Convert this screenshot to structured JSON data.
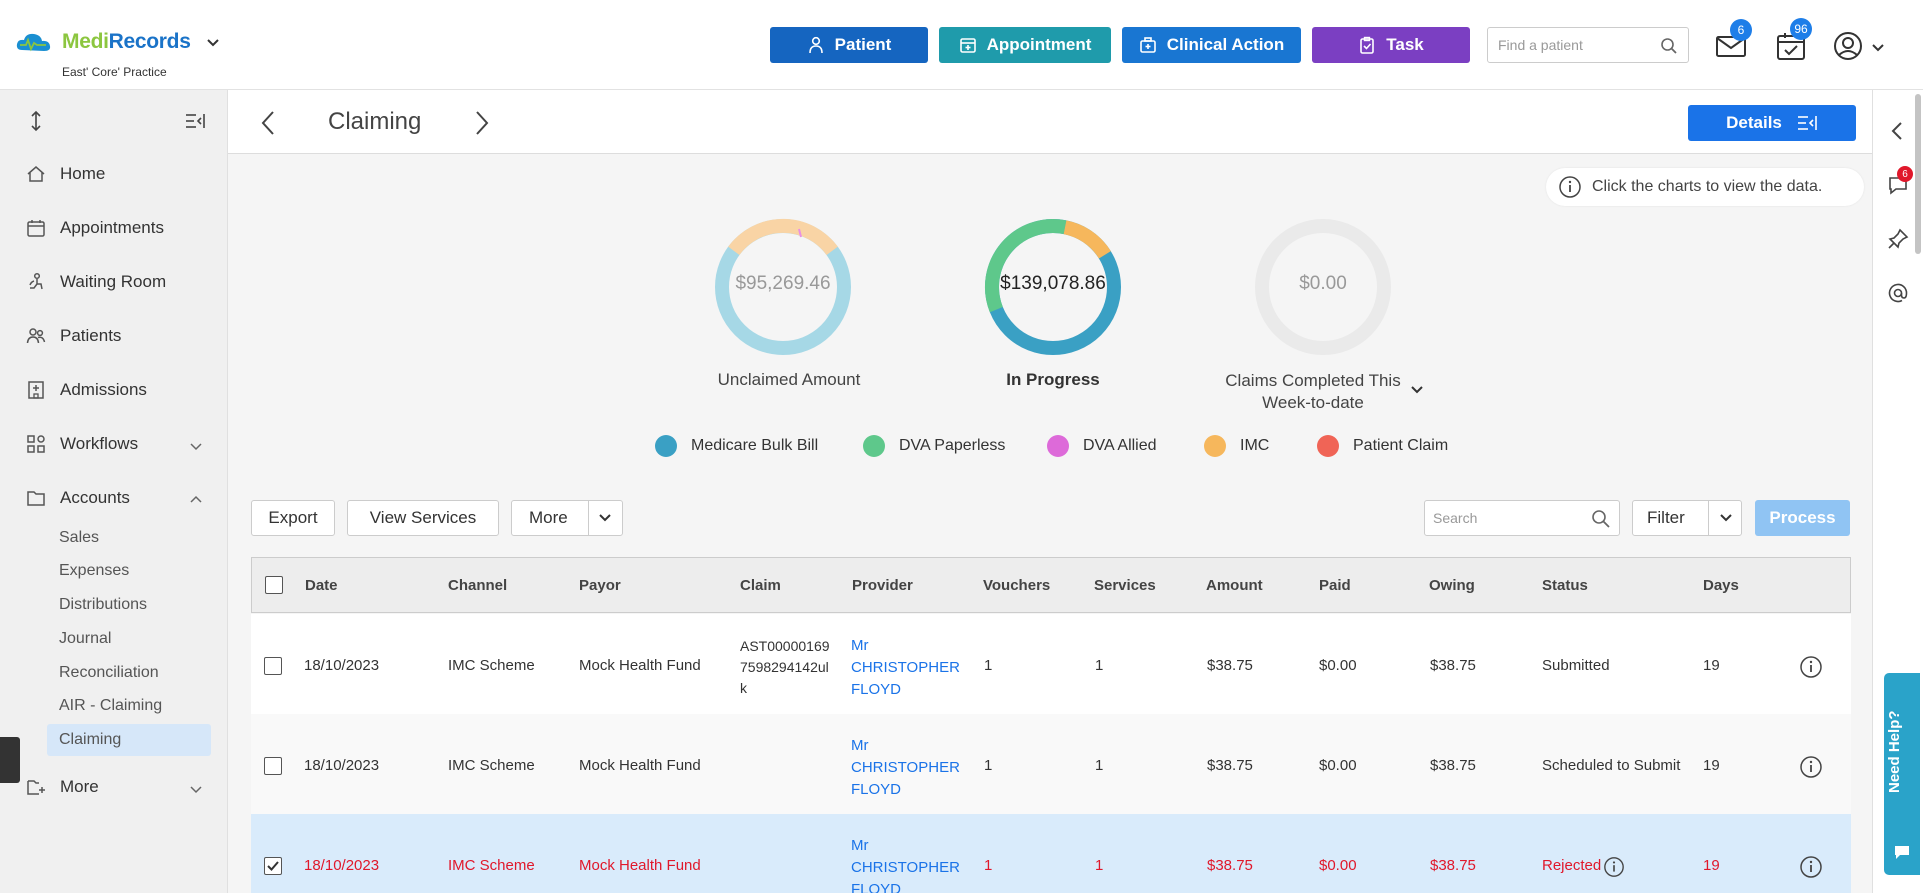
{
  "app": {
    "logo_part1": "Medi",
    "logo_part2": "Records",
    "practice": "East' Core' Practice"
  },
  "header": {
    "buttons": {
      "patient": "Patient",
      "appointment": "Appointment",
      "clinical_action": "Clinical Action",
      "task": "Task"
    },
    "find_patient_placeholder": "Find a patient",
    "mail_count": "6",
    "tasks_count": "96",
    "colors": {
      "patient": "#1565c0",
      "appointment": "#1f9bab",
      "clinical_action": "#1976d2",
      "task": "#7b3fc2"
    }
  },
  "sidebar": {
    "items": [
      {
        "label": "Home",
        "icon": "home-icon"
      },
      {
        "label": "Appointments",
        "icon": "calendar-icon"
      },
      {
        "label": "Waiting Room",
        "icon": "waiting-room-icon"
      },
      {
        "label": "Patients",
        "icon": "patients-icon"
      },
      {
        "label": "Admissions",
        "icon": "hospital-icon"
      },
      {
        "label": "Workflows",
        "icon": "workflow-icon"
      },
      {
        "label": "Accounts",
        "icon": "folder-icon"
      }
    ],
    "account_subitems": [
      "Sales",
      "Expenses",
      "Distributions",
      "Journal",
      "Reconciliation",
      "AIR - Claiming",
      "Claiming"
    ],
    "more": "More"
  },
  "page": {
    "title": "Claiming",
    "details_button": "Details",
    "hint": "Click the charts to view the data."
  },
  "summary": {
    "unclaimed": {
      "value": "$95,269.46",
      "label": "Unclaimed Amount"
    },
    "in_progress": {
      "value": "$139,078.86",
      "label": "In Progress"
    },
    "completed": {
      "value": "$0.00",
      "label_line1": "Claims Completed This",
      "label_line2": "Week-to-date"
    }
  },
  "legend": [
    {
      "label": "Medicare Bulk Bill",
      "color": "#3aa0c4"
    },
    {
      "label": "DVA Paperless",
      "color": "#5ec88b"
    },
    {
      "label": "DVA Allied",
      "color": "#dd6ad9"
    },
    {
      "label": "IMC",
      "color": "#f6b75c"
    },
    {
      "label": "Patient Claim",
      "color": "#f06456"
    }
  ],
  "toolbar": {
    "export": "Export",
    "view_services": "View Services",
    "more": "More",
    "search_placeholder": "Search",
    "filter": "Filter",
    "process": "Process"
  },
  "table": {
    "columns": [
      "Date",
      "Channel",
      "Payor",
      "Claim",
      "Provider",
      "Vouchers",
      "Services",
      "Amount",
      "Paid",
      "Owing",
      "Status",
      "Days"
    ],
    "rows": [
      {
        "date": "18/10/2023",
        "channel": "IMC Scheme",
        "payor": "Mock Health Fund",
        "claim_l1": "AST00000169",
        "claim_l2": "7598294142ul",
        "claim_l3": "k",
        "provider_l1": "Mr",
        "provider_l2": "CHRISTOPHER",
        "provider_l3": "FLOYD",
        "vouchers": "1",
        "services": "1",
        "amount": "$38.75",
        "paid": "$0.00",
        "owing": "$38.75",
        "status": "Submitted",
        "days": "19",
        "checked": false
      },
      {
        "date": "18/10/2023",
        "channel": "IMC Scheme",
        "payor": "Mock Health Fund",
        "claim_l1": "",
        "claim_l2": "",
        "claim_l3": "",
        "provider_l1": "Mr",
        "provider_l2": "CHRISTOPHER",
        "provider_l3": "FLOYD",
        "vouchers": "1",
        "services": "1",
        "amount": "$38.75",
        "paid": "$0.00",
        "owing": "$38.75",
        "status": "Scheduled to Submit",
        "days": "19",
        "checked": false
      },
      {
        "date": "18/10/2023",
        "channel": "IMC Scheme",
        "payor": "Mock Health Fund",
        "claim_l1": "",
        "claim_l2": "",
        "claim_l3": "",
        "provider_l1": "Mr",
        "provider_l2": "CHRISTOPHER",
        "provider_l3": "FLOYD",
        "vouchers": "1",
        "services": "1",
        "amount": "$38.75",
        "paid": "$0.00",
        "owing": "$38.75",
        "status": "Rejected",
        "days": "19",
        "checked": true
      }
    ]
  },
  "right_rail": {
    "notification_count": "6",
    "need_help": "Need Help?"
  }
}
